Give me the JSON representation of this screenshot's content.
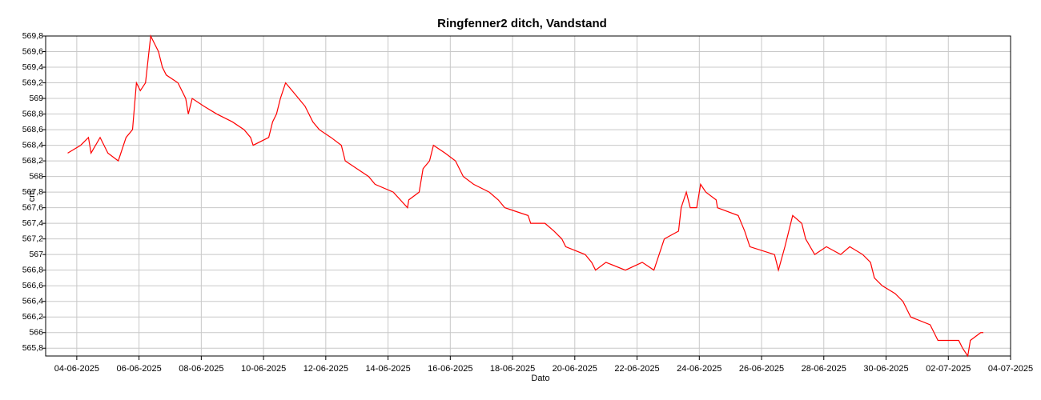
{
  "chart_data": {
    "type": "line",
    "title": "Ringfenner2 ditch, Vandstand",
    "x_label": "Dato",
    "y_label": "cm",
    "grid": true,
    "xlim": [
      "2025-06-03",
      "2025-07-04"
    ],
    "ylim": [
      565.7,
      569.8
    ],
    "xticks": [
      {
        "value": "2025-06-04",
        "label": "04-06-2025"
      },
      {
        "value": "2025-06-06",
        "label": "06-06-2025"
      },
      {
        "value": "2025-06-08",
        "label": "08-06-2025"
      },
      {
        "value": "2025-06-10",
        "label": "10-06-2025"
      },
      {
        "value": "2025-06-12",
        "label": "12-06-2025"
      },
      {
        "value": "2025-06-14",
        "label": "14-06-2025"
      },
      {
        "value": "2025-06-16",
        "label": "16-06-2025"
      },
      {
        "value": "2025-06-18",
        "label": "18-06-2025"
      },
      {
        "value": "2025-06-20",
        "label": "20-06-2025"
      },
      {
        "value": "2025-06-22",
        "label": "22-06-2025"
      },
      {
        "value": "2025-06-24",
        "label": "24-06-2025"
      },
      {
        "value": "2025-06-26",
        "label": "26-06-2025"
      },
      {
        "value": "2025-06-28",
        "label": "28-06-2025"
      },
      {
        "value": "2025-06-30",
        "label": "30-06-2025"
      },
      {
        "value": "2025-07-02",
        "label": "02-07-2025"
      },
      {
        "value": "2025-07-04",
        "label": "04-07-2025"
      }
    ],
    "yticks": [
      {
        "value": 565.8,
        "label": "565,8"
      },
      566,
      {
        "value": 566.2,
        "label": "566,2"
      },
      {
        "value": 566.4,
        "label": "566,4"
      },
      {
        "value": 566.6,
        "label": "566,6"
      },
      {
        "value": 566.8,
        "label": "566,8"
      },
      567,
      {
        "value": 567.2,
        "label": "567,2"
      },
      {
        "value": 567.4,
        "label": "567,4"
      },
      {
        "value": 567.6,
        "label": "567,6"
      },
      {
        "value": 567.8,
        "label": "567,8"
      },
      568,
      {
        "value": 568.2,
        "label": "568,2"
      },
      {
        "value": 568.4,
        "label": "568,4"
      },
      {
        "value": 568.6,
        "label": "568,6"
      },
      {
        "value": 568.8,
        "label": "568,8"
      },
      569,
      {
        "value": 569.2,
        "label": "569,2"
      },
      {
        "value": 569.4,
        "label": "569,4"
      },
      {
        "value": 569.6,
        "label": "569,6"
      },
      {
        "value": 569.8,
        "label": "569,8"
      }
    ],
    "x": [
      "2025-06-03 17:00",
      "2025-06-04 03:00",
      "2025-06-04 09:00",
      "2025-06-04 11:00",
      "2025-06-04 18:00",
      "2025-06-05 00:00",
      "2025-06-05 08:00",
      "2025-06-05 14:00",
      "2025-06-05 19:00",
      "2025-06-05 22:00",
      "2025-06-06 01:00",
      "2025-06-06 05:00",
      "2025-06-06 09:00",
      "2025-06-06 12:00",
      "2025-06-06 15:00",
      "2025-06-06 18:00",
      "2025-06-06 21:00",
      "2025-06-07 06:00",
      "2025-06-07 12:00",
      "2025-06-07 14:00",
      "2025-06-07 17:00",
      "2025-06-08 02:00",
      "2025-06-08 12:00",
      "2025-06-09 00:00",
      "2025-06-09 09:00",
      "2025-06-09 14:00",
      "2025-06-09 16:00",
      "2025-06-10 04:00",
      "2025-06-10 07:00",
      "2025-06-10 10:00",
      "2025-06-10 13:00",
      "2025-06-10 17:00",
      "2025-06-10 22:00",
      "2025-06-11 03:00",
      "2025-06-11 08:00",
      "2025-06-11 14:00",
      "2025-06-11 19:00",
      "2025-06-12 04:00",
      "2025-06-12 12:00",
      "2025-06-12 15:00",
      "2025-06-13 00:00",
      "2025-06-13 09:00",
      "2025-06-13 14:00",
      "2025-06-14 04:00",
      "2025-06-14 15:00",
      "2025-06-14 16:00",
      "2025-06-15 00:00",
      "2025-06-15 03:00",
      "2025-06-15 08:00",
      "2025-06-15 11:00",
      "2025-06-15 20:00",
      "2025-06-16 04:00",
      "2025-06-16 10:00",
      "2025-06-16 18:00",
      "2025-06-17 06:00",
      "2025-06-17 13:00",
      "2025-06-17 18:00",
      "2025-06-18 12:00",
      "2025-06-18 14:00",
      "2025-06-19 01:00",
      "2025-06-19 08:00",
      "2025-06-19 14:00",
      "2025-06-19 17:00",
      "2025-06-20 08:00",
      "2025-06-20 13:00",
      "2025-06-20 16:00",
      "2025-06-21 00:00",
      "2025-06-21 15:00",
      "2025-06-22 04:00",
      "2025-06-22 13:00",
      "2025-06-22 21:00",
      "2025-06-23 08:00",
      "2025-06-23 10:00",
      "2025-06-23 14:00",
      "2025-06-23 17:00",
      "2025-06-23 22:00",
      "2025-06-24 01:00",
      "2025-06-24 05:00",
      "2025-06-24 13:00",
      "2025-06-24 14:00",
      "2025-06-25 06:00",
      "2025-06-25 11:00",
      "2025-06-25 15:00",
      "2025-06-26 10:00",
      "2025-06-26 13:00",
      "2025-06-26 18:00",
      "2025-06-26 21:00",
      "2025-06-27 00:00",
      "2025-06-27 07:00",
      "2025-06-27 10:00",
      "2025-06-27 17:00",
      "2025-06-28 02:00",
      "2025-06-28 13:00",
      "2025-06-28 20:00",
      "2025-06-29 06:00",
      "2025-06-29 12:00",
      "2025-06-29 15:00",
      "2025-06-29 21:00",
      "2025-06-30 07:00",
      "2025-06-30 13:00",
      "2025-06-30 16:00",
      "2025-06-30 19:00",
      "2025-07-01 10:00",
      "2025-07-01 13:00",
      "2025-07-01 16:00",
      "2025-07-02 08:00",
      "2025-07-02 11:00",
      "2025-07-02 15:00",
      "2025-07-02 17:00",
      "2025-07-03 01:00",
      "2025-07-03 03:00"
    ],
    "series": [
      {
        "color": "#ff0000",
        "values": [
          568.3,
          568.4,
          568.5,
          568.3,
          568.5,
          568.3,
          568.2,
          568.5,
          568.6,
          569.2,
          569.1,
          569.2,
          569.8,
          569.7,
          569.6,
          569.4,
          569.3,
          569.2,
          569.0,
          568.8,
          569.0,
          568.9,
          568.8,
          568.7,
          568.6,
          568.5,
          568.4,
          568.5,
          568.7,
          568.8,
          569.0,
          569.2,
          569.1,
          569.0,
          568.9,
          568.7,
          568.6,
          568.5,
          568.4,
          568.2,
          568.1,
          568.0,
          567.9,
          567.8,
          567.6,
          567.7,
          567.8,
          568.1,
          568.2,
          568.4,
          568.3,
          568.2,
          568.0,
          567.9,
          567.8,
          567.7,
          567.6,
          567.5,
          567.4,
          567.4,
          567.3,
          567.2,
          567.1,
          567.0,
          566.9,
          566.8,
          566.9,
          566.8,
          566.9,
          566.8,
          567.2,
          567.3,
          567.6,
          567.8,
          567.6,
          567.6,
          567.9,
          567.8,
          567.7,
          567.6,
          567.5,
          567.3,
          567.1,
          567.0,
          566.8,
          567.1,
          567.3,
          567.5,
          567.4,
          567.2,
          567.0,
          567.1,
          567.0,
          567.1,
          567.0,
          566.9,
          566.7,
          566.6,
          566.5,
          566.4,
          566.3,
          566.2,
          566.1,
          566.0,
          565.9,
          565.9,
          565.8,
          565.7,
          565.9,
          566.0,
          566.0
        ]
      }
    ]
  }
}
